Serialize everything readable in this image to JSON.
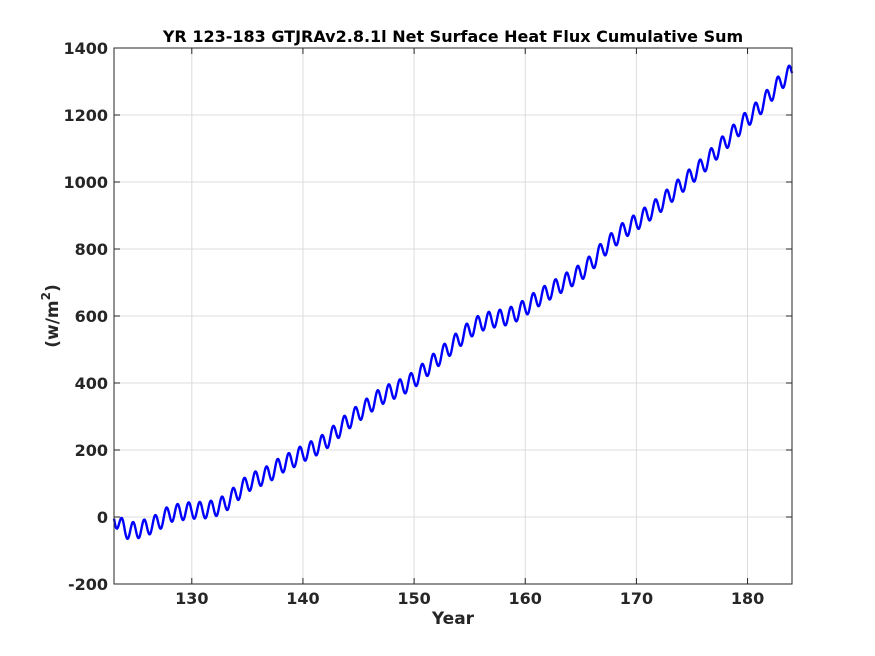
{
  "chart_data": {
    "type": "line",
    "title": "YR 123-183 GTJRAv2.8.1l Net Surface Heat Flux  Cumulative Sum",
    "xlabel": "Year",
    "ylabel_base": "(w/m",
    "ylabel_sup": "2",
    "ylabel_tail": ")",
    "xlim": [
      123,
      184
    ],
    "ylim": [
      -200,
      1400
    ],
    "xticks": [
      130,
      140,
      150,
      160,
      170,
      180
    ],
    "yticks": [
      -200,
      0,
      200,
      400,
      600,
      800,
      1000,
      1200,
      1400
    ],
    "grid": true,
    "line_color": "#0000ff",
    "series": [
      {
        "x": [
          123.0,
          124.0,
          125.0,
          126.0,
          127.0,
          128.0,
          129.0,
          130.0,
          131.0,
          132.0,
          133.0,
          134.0,
          135.0,
          136.0,
          137.0,
          138.0,
          139.0,
          140.0,
          141.0,
          142.0,
          143.0,
          144.0,
          145.0,
          146.0,
          147.0,
          148.0,
          149.0,
          150.0,
          151.0,
          152.0,
          153.0,
          154.0,
          155.0,
          156.0,
          157.0,
          158.0,
          159.0,
          160.0,
          161.0,
          162.0,
          163.0,
          164.0,
          165.0,
          166.0,
          167.0,
          168.0,
          169.0,
          170.0,
          171.0,
          172.0,
          173.0,
          174.0,
          175.0,
          176.0,
          177.0,
          178.0,
          179.0,
          180.0,
          181.0,
          182.0,
          183.0,
          184.0
        ],
        "trend": [
          0,
          -40,
          -40,
          -30,
          -15,
          10,
          15,
          20,
          20,
          25,
          40,
          70,
          100,
          115,
          130,
          155,
          170,
          190,
          205,
          225,
          255,
          285,
          310,
          335,
          360,
          375,
          390,
          410,
          440,
          470,
          500,
          530,
          560,
          580,
          590,
          595,
          605,
          625,
          650,
          670,
          690,
          710,
          730,
          760,
          800,
          830,
          860,
          880,
          905,
          930,
          960,
          990,
          1020,
          1050,
          1085,
          1120,
          1155,
          1190,
          1220,
          1260,
          1300,
          1330
        ],
        "amplitude": 25
      }
    ]
  }
}
